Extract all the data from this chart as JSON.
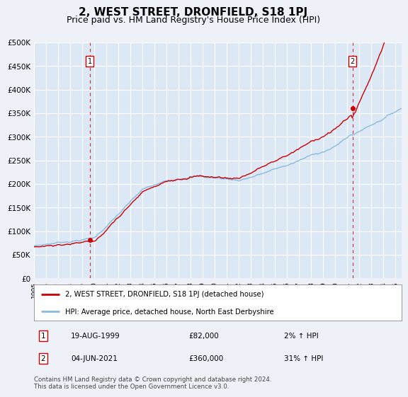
{
  "title": "2, WEST STREET, DRONFIELD, S18 1PJ",
  "subtitle": "Price paid vs. HM Land Registry's House Price Index (HPI)",
  "title_fontsize": 11,
  "subtitle_fontsize": 9,
  "ylim": [
    0,
    500000
  ],
  "yticks": [
    0,
    50000,
    100000,
    150000,
    200000,
    250000,
    300000,
    350000,
    400000,
    450000,
    500000
  ],
  "ytick_labels": [
    "£0",
    "£50K",
    "£100K",
    "£150K",
    "£200K",
    "£250K",
    "£300K",
    "£350K",
    "£400K",
    "£450K",
    "£500K"
  ],
  "xlim_start": 1995.0,
  "xlim_end": 2025.5,
  "xtick_years": [
    1995,
    1996,
    1997,
    1998,
    1999,
    2000,
    2001,
    2002,
    2003,
    2004,
    2005,
    2006,
    2007,
    2008,
    2009,
    2010,
    2011,
    2012,
    2013,
    2014,
    2015,
    2016,
    2017,
    2018,
    2019,
    2020,
    2021,
    2022,
    2023,
    2024,
    2025
  ],
  "sale1_x": 1999.625,
  "sale1_y": 82000,
  "sale1_label": "19-AUG-1999",
  "sale1_price": "£82,000",
  "sale1_hpi": "2% ↑ HPI",
  "sale2_x": 2021.42,
  "sale2_y": 360000,
  "sale2_label": "04-JUN-2021",
  "sale2_price": "£360,000",
  "sale2_hpi": "31% ↑ HPI",
  "hpi_color": "#88bbdd",
  "sale_color": "#cc0000",
  "marker_color": "#cc0000",
  "bg_color": "#eef2f8",
  "plot_bg": "#dce8f5",
  "grid_color": "#ffffff",
  "legend_label_sale": "2, WEST STREET, DRONFIELD, S18 1PJ (detached house)",
  "legend_label_hpi": "HPI: Average price, detached house, North East Derbyshire",
  "footnote": "Contains HM Land Registry data © Crown copyright and database right 2024.\nThis data is licensed under the Open Government Licence v3.0."
}
